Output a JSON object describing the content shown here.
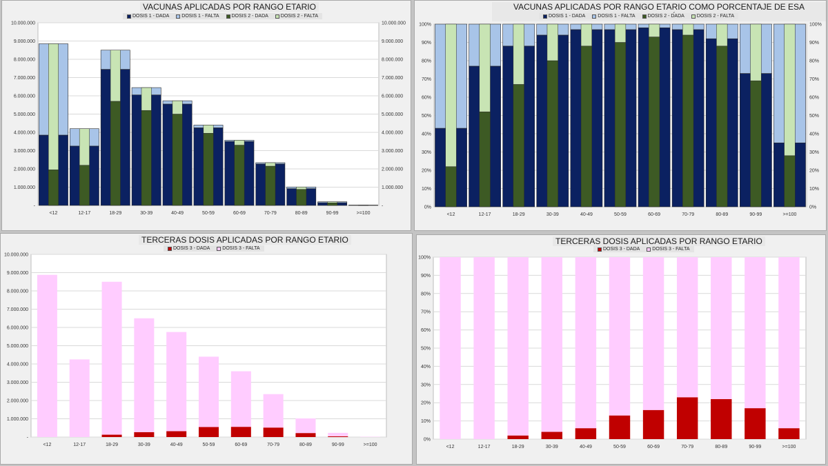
{
  "chart_data": [
    {
      "type": "bar",
      "title": "VACUNAS APLICADAS POR RANGO ETARIO",
      "categories": [
        "<12",
        "12-17",
        "18-29",
        "30-39",
        "40-49",
        "50-59",
        "60-69",
        "70-79",
        "80-89",
        "90-99",
        ">=100"
      ],
      "ylim": [
        0,
        10000000
      ],
      "yticks": [
        "-",
        "1.000.000",
        "2.000.000",
        "3.000.000",
        "4.000.000",
        "5.000.000",
        "6.000.000",
        "7.000.000",
        "8.000.000",
        "9.000.000",
        "10.000.000"
      ],
      "right_axis": true,
      "grid": true,
      "legend_position": "top",
      "series": [
        {
          "name": "DOSIS 1 - DADA",
          "color": "#0b2161",
          "values": [
            3850000,
            3250000,
            7450000,
            6050000,
            5550000,
            4250000,
            3500000,
            2270000,
            920000,
            150000,
            10000
          ]
        },
        {
          "name": "DOSIS 1 - FALTA",
          "color": "#a8c4e8",
          "values": [
            5000000,
            950000,
            1050000,
            400000,
            180000,
            150000,
            70000,
            70000,
            90000,
            50000,
            10000
          ]
        },
        {
          "name": "DOSIS 2 - DADA",
          "color": "#3d5a24",
          "values": [
            1950000,
            2200000,
            5700000,
            5200000,
            5000000,
            3950000,
            3300000,
            2150000,
            880000,
            140000,
            8000
          ]
        },
        {
          "name": "DOSIS 2 - FALTA",
          "color": "#c8e4b4",
          "values": [
            6900000,
            2000000,
            2800000,
            1250000,
            730000,
            450000,
            270000,
            190000,
            130000,
            60000,
            12000
          ]
        }
      ]
    },
    {
      "type": "bar",
      "title": "VACUNAS APLICADAS POR RANGO ETARIO COMO PORCENTAJE DE ESA POBLACIÓN",
      "categories": [
        "<12",
        "12-17",
        "18-29",
        "30-39",
        "40-49",
        "50-59",
        "60-69",
        "70-79",
        "80-89",
        "90-99",
        ">=100"
      ],
      "ylim": [
        0,
        100
      ],
      "yticks": [
        "0%",
        "10%",
        "20%",
        "30%",
        "40%",
        "50%",
        "60%",
        "70%",
        "80%",
        "90%",
        "100%"
      ],
      "right_axis": true,
      "grid": true,
      "legend_position": "top",
      "series": [
        {
          "name": "DOSIS 1 - DADA",
          "color": "#0b2161",
          "values": [
            43,
            77,
            88,
            94,
            97,
            97,
            98,
            97,
            92,
            73,
            35
          ]
        },
        {
          "name": "DOSIS 1 - FALTA",
          "color": "#a8c4e8",
          "values": [
            57,
            23,
            12,
            6,
            3,
            3,
            2,
            3,
            8,
            27,
            65
          ]
        },
        {
          "name": "DOSIS 2 - DADA",
          "color": "#3d5a24",
          "values": [
            22,
            52,
            67,
            80,
            88,
            90,
            93,
            94,
            88,
            69,
            28
          ]
        },
        {
          "name": "DOSIS 2 - FALTA",
          "color": "#c8e4b4",
          "values": [
            78,
            48,
            33,
            20,
            12,
            10,
            7,
            6,
            12,
            31,
            72
          ]
        }
      ]
    },
    {
      "type": "bar",
      "title": "TERCERAS DOSIS APLICADAS POR RANGO ETARIO",
      "categories": [
        "<12",
        "12-17",
        "18-29",
        "30-39",
        "40-49",
        "50-59",
        "60-69",
        "70-79",
        "80-89",
        "90-99",
        ">=100"
      ],
      "ylim": [
        0,
        10000000
      ],
      "yticks": [
        "-",
        "1.000.000",
        "2.000.000",
        "3.000.000",
        "4.000.000",
        "5.000.000",
        "6.000.000",
        "7.000.000",
        "8.000.000",
        "9.000.000",
        "10.000.000"
      ],
      "right_axis": false,
      "grid": true,
      "legend_position": "top",
      "series": [
        {
          "name": "DOSIS 3 - DADA",
          "color": "#c00000",
          "values": [
            0,
            0,
            130000,
            270000,
            320000,
            550000,
            560000,
            520000,
            220000,
            40000,
            2000
          ]
        },
        {
          "name": "DOSIS 3 - FALTA",
          "color": "#ffccff",
          "values": [
            8880000,
            4250000,
            8370000,
            6230000,
            5430000,
            3850000,
            3040000,
            1830000,
            800000,
            190000,
            18000
          ]
        }
      ]
    },
    {
      "type": "bar",
      "title": "TERCERAS DOSIS APLICADAS POR RANGO ETARIO",
      "categories": [
        "<12",
        "12-17",
        "18-29",
        "30-39",
        "40-49",
        "50-59",
        "60-69",
        "70-79",
        "80-89",
        "90-99",
        ">=100"
      ],
      "ylim": [
        0,
        100
      ],
      "yticks": [
        "0%",
        "10%",
        "20%",
        "30%",
        "40%",
        "50%",
        "60%",
        "70%",
        "80%",
        "90%",
        "100%"
      ],
      "right_axis": false,
      "grid": true,
      "legend_position": "top",
      "series": [
        {
          "name": "DOSIS 3 - DADA",
          "color": "#c00000",
          "values": [
            0,
            0,
            2,
            4,
            6,
            13,
            16,
            23,
            22,
            17,
            6
          ]
        },
        {
          "name": "DOSIS 3 - FALTA",
          "color": "#ffccff",
          "values": [
            100,
            100,
            98,
            96,
            94,
            87,
            84,
            77,
            78,
            83,
            94
          ]
        }
      ]
    }
  ]
}
